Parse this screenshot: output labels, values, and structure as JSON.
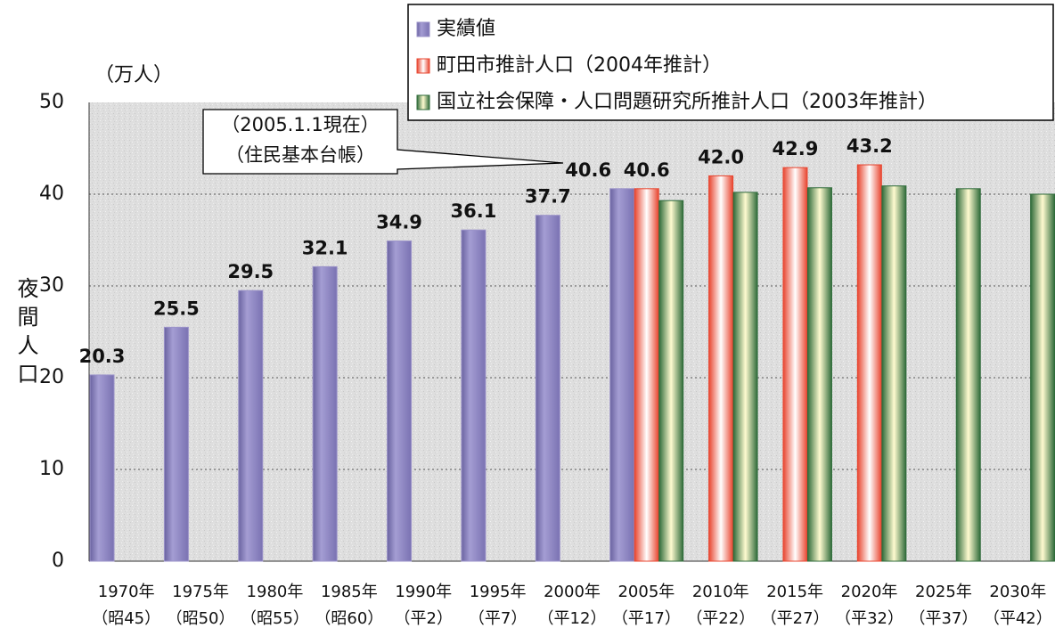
{
  "chart_data": {
    "type": "bar",
    "y_unit": "（万人）",
    "y_label": "夜間人口",
    "categories": [
      [
        "1970年",
        "（昭45）"
      ],
      [
        "1975年",
        "（昭50）"
      ],
      [
        "1980年",
        "（昭55）"
      ],
      [
        "1985年",
        "（昭60）"
      ],
      [
        "1990年",
        "（平2）"
      ],
      [
        "1995年",
        "（平7）"
      ],
      [
        "2000年",
        "（平12）"
      ],
      [
        "2005年",
        "（平17）"
      ],
      [
        "2010年",
        "（平22）"
      ],
      [
        "2015年",
        "（平27）"
      ],
      [
        "2020年",
        "（平32）"
      ],
      [
        "2025年",
        "（平37）"
      ],
      [
        "2030年",
        "（平42）"
      ]
    ],
    "series": [
      {
        "name": "実績値",
        "color": "#9b93c9",
        "values": [
          20.3,
          25.5,
          29.5,
          32.1,
          34.9,
          36.1,
          37.7,
          40.6,
          null,
          null,
          null,
          null,
          null
        ],
        "value_labels": [
          "20.3",
          "25.5",
          "29.5",
          "32.1",
          "34.9",
          "36.1",
          "37.7",
          "40.6",
          null,
          null,
          null,
          null,
          null
        ]
      },
      {
        "name": "町田市推計人口（2004年推計）",
        "color": "#e8452f",
        "values": [
          null,
          null,
          null,
          null,
          null,
          null,
          null,
          40.6,
          42.0,
          42.9,
          43.2,
          null,
          null
        ],
        "value_labels": [
          null,
          null,
          null,
          null,
          null,
          null,
          null,
          "40.6",
          "42.0",
          "42.9",
          "43.2",
          null,
          null
        ]
      },
      {
        "name": "国立社会保障・人口問題研究所推計人口（2003年推計）",
        "color": "#2f6b3a",
        "values": [
          null,
          null,
          null,
          null,
          null,
          null,
          null,
          39.3,
          40.2,
          40.7,
          40.9,
          40.6,
          40.0
        ]
      }
    ],
    "annotation": [
      "（2005.1.1現在）",
      "（住民基本台帳）"
    ],
    "ylim": [
      0,
      50
    ],
    "yticks": [
      0,
      10,
      20,
      30,
      40,
      50
    ],
    "grid": true
  }
}
